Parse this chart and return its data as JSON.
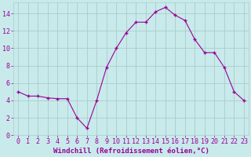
{
  "x": [
    0,
    1,
    2,
    3,
    4,
    5,
    6,
    7,
    8,
    9,
    10,
    11,
    12,
    13,
    14,
    15,
    16,
    17,
    18,
    19,
    20,
    21,
    22,
    23
  ],
  "y": [
    5.0,
    4.5,
    4.5,
    4.3,
    4.2,
    4.2,
    2.0,
    0.8,
    4.0,
    7.8,
    10.0,
    11.8,
    13.0,
    13.0,
    14.2,
    14.7,
    13.8,
    13.2,
    11.0,
    9.5,
    9.5,
    7.8,
    5.0,
    4.0
  ],
  "line_color": "#990099",
  "marker": "+",
  "bg_color": "#c8eaea",
  "grid_color": "#aacccc",
  "xlabel": "Windchill (Refroidissement éolien,°C)",
  "xlabel_color": "#990099",
  "tick_color": "#990099",
  "ylim": [
    0,
    15
  ],
  "xlim": [
    -0.5,
    23.5
  ],
  "yticks": [
    0,
    2,
    4,
    6,
    8,
    10,
    12,
    14
  ],
  "xticks": [
    0,
    1,
    2,
    3,
    4,
    5,
    6,
    7,
    8,
    9,
    10,
    11,
    12,
    13,
    14,
    15,
    16,
    17,
    18,
    19,
    20,
    21,
    22,
    23
  ],
  "xtick_labels": [
    "0",
    "1",
    "2",
    "3",
    "4",
    "5",
    "6",
    "7",
    "8",
    "9",
    "10",
    "11",
    "12",
    "13",
    "14",
    "15",
    "16",
    "17",
    "18",
    "19",
    "20",
    "21",
    "22",
    "23"
  ],
  "xlabel_fontsize": 6.5,
  "tick_fontsize": 6.0
}
